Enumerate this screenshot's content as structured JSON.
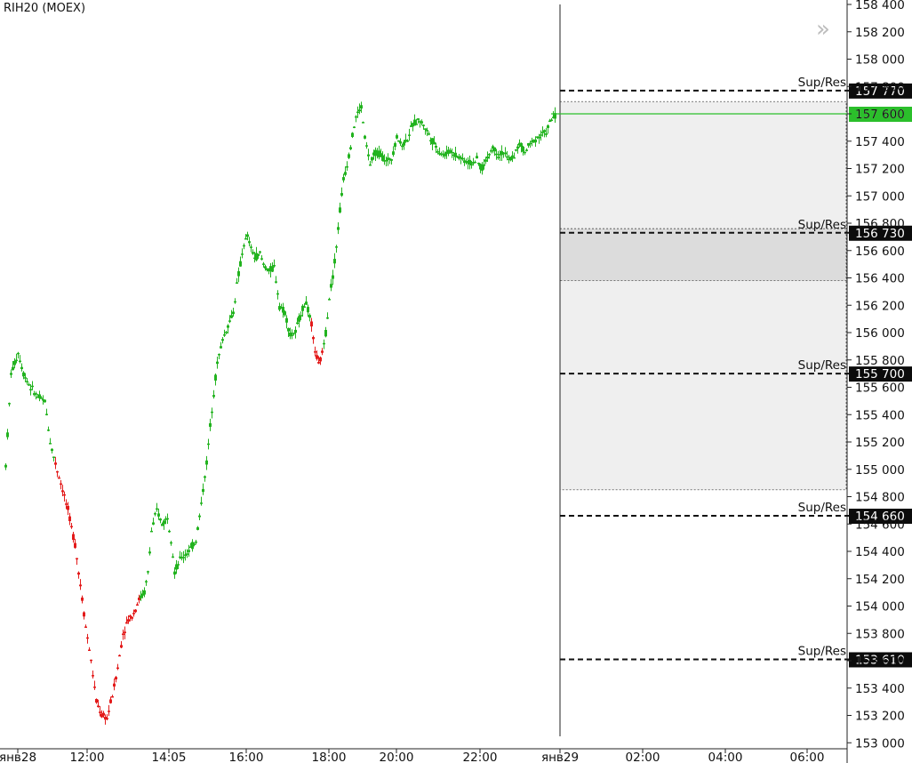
{
  "instrument": "RIH20 (MOEX)",
  "last_price_label": "157 600",
  "colors": {
    "up": "#22b31f",
    "down": "#e31b1b",
    "last": "#2bbf2b"
  },
  "chart_data": {
    "type": "candlestick",
    "ylim": [
      152900,
      158450
    ],
    "y_ticks": [
      "158 400",
      "158 200",
      "158 000",
      "157 800",
      "157 600",
      "157 400",
      "157 200",
      "157 000",
      "156 800",
      "156 600",
      "156 400",
      "156 200",
      "156 000",
      "155 800",
      "155 600",
      "155 400",
      "155 200",
      "155 000",
      "154 800",
      "154 600",
      "154 400",
      "154 200",
      "154 000",
      "153 800",
      "153 600",
      "153 400",
      "153 200",
      "153 000"
    ],
    "x_ticks": [
      "янв28",
      "12:00",
      "14:05",
      "16:00",
      "18:00",
      "20:00",
      "22:00",
      "янв29",
      "02:00",
      "04:00",
      "06:00"
    ],
    "last_price": 157600,
    "price_path": [
      [
        0,
        155030
      ],
      [
        6,
        155700
      ],
      [
        14,
        155850
      ],
      [
        20,
        155700
      ],
      [
        28,
        155600
      ],
      [
        36,
        155530
      ],
      [
        44,
        155500
      ],
      [
        50,
        155200
      ],
      [
        56,
        155040
      ],
      [
        62,
        154900
      ],
      [
        70,
        154700
      ],
      [
        78,
        154450
      ],
      [
        84,
        154150
      ],
      [
        90,
        153850
      ],
      [
        96,
        153600
      ],
      [
        102,
        153300
      ],
      [
        108,
        153200
      ],
      [
        114,
        153180
      ],
      [
        120,
        153350
      ],
      [
        126,
        153550
      ],
      [
        132,
        153800
      ],
      [
        138,
        153900
      ],
      [
        144,
        153950
      ],
      [
        150,
        154050
      ],
      [
        156,
        154100
      ],
      [
        160,
        154250
      ],
      [
        164,
        154550
      ],
      [
        170,
        154700
      ],
      [
        176,
        154600
      ],
      [
        182,
        154650
      ],
      [
        186,
        154500
      ],
      [
        190,
        154250
      ],
      [
        196,
        154340
      ],
      [
        202,
        154380
      ],
      [
        208,
        154420
      ],
      [
        214,
        154480
      ],
      [
        220,
        154750
      ],
      [
        226,
        155050
      ],
      [
        232,
        155450
      ],
      [
        238,
        155780
      ],
      [
        244,
        155950
      ],
      [
        250,
        156050
      ],
      [
        256,
        156150
      ],
      [
        260,
        156350
      ],
      [
        264,
        156500
      ],
      [
        268,
        156650
      ],
      [
        272,
        156700
      ],
      [
        276,
        156620
      ],
      [
        280,
        156550
      ],
      [
        286,
        156580
      ],
      [
        290,
        156500
      ],
      [
        296,
        156450
      ],
      [
        302,
        156480
      ],
      [
        308,
        156200
      ],
      [
        314,
        156150
      ],
      [
        320,
        155980
      ],
      [
        326,
        156000
      ],
      [
        332,
        156150
      ],
      [
        338,
        156220
      ],
      [
        344,
        156050
      ],
      [
        348,
        155870
      ],
      [
        352,
        155760
      ],
      [
        356,
        155850
      ],
      [
        360,
        156000
      ],
      [
        364,
        156260
      ],
      [
        368,
        156420
      ],
      [
        372,
        156630
      ],
      [
        376,
        156900
      ],
      [
        380,
        157120
      ],
      [
        384,
        157230
      ],
      [
        388,
        157370
      ],
      [
        394,
        157580
      ],
      [
        400,
        157650
      ],
      [
        404,
        157430
      ],
      [
        410,
        157230
      ],
      [
        416,
        157320
      ],
      [
        422,
        157300
      ],
      [
        428,
        157250
      ],
      [
        434,
        157280
      ],
      [
        440,
        157430
      ],
      [
        446,
        157370
      ],
      [
        452,
        157420
      ],
      [
        458,
        157520
      ],
      [
        464,
        157560
      ],
      [
        470,
        157520
      ],
      [
        476,
        157450
      ],
      [
        482,
        157380
      ],
      [
        488,
        157320
      ],
      [
        494,
        157300
      ],
      [
        500,
        157330
      ],
      [
        506,
        157300
      ],
      [
        512,
        157280
      ],
      [
        518,
        157250
      ],
      [
        524,
        157240
      ],
      [
        530,
        157260
      ],
      [
        536,
        157200
      ],
      [
        542,
        157280
      ],
      [
        548,
        157360
      ],
      [
        554,
        157300
      ],
      [
        560,
        157320
      ],
      [
        566,
        157260
      ],
      [
        572,
        157300
      ],
      [
        578,
        157380
      ],
      [
        584,
        157320
      ],
      [
        590,
        157380
      ],
      [
        596,
        157420
      ],
      [
        602,
        157450
      ],
      [
        608,
        157470
      ],
      [
        614,
        157560
      ],
      [
        620,
        157600
      ]
    ],
    "red_segments": [
      [
        56,
        108
      ],
      [
        108,
        150
      ],
      [
        344,
        356
      ]
    ],
    "levels": [
      {
        "label": "Sup/Res",
        "value": "157 770",
        "price": 157770
      },
      {
        "label": "Sup/Res",
        "value": "156 730",
        "price": 156730
      },
      {
        "label": "Sup/Res",
        "value": "155 700",
        "price": 155700
      },
      {
        "label": "Sup/Res",
        "value": "154 660",
        "price": 154660
      },
      {
        "label": "Sup/Res",
        "value": "153 610",
        "price": 153610
      }
    ],
    "zones": [
      {
        "from": 154850,
        "to": 157690,
        "color": "#efefef"
      },
      {
        "from": 156380,
        "to": 156760,
        "color": "#dcdcdc"
      }
    ]
  }
}
